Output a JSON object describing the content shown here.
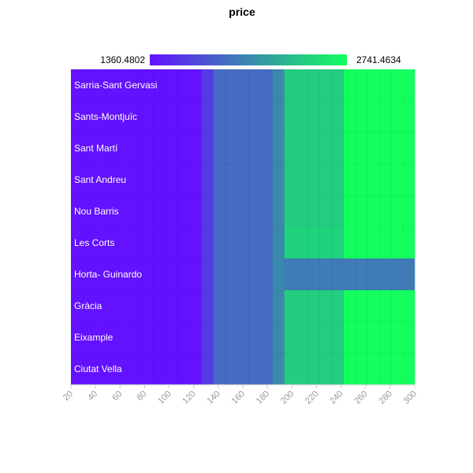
{
  "chart_data": {
    "type": "heatmap",
    "title": "price",
    "visual_map": {
      "min": 1360.4802,
      "max": 2741.4634,
      "min_label": "1360.4802",
      "max_label": "2741.4634",
      "color_low": "#6311ff",
      "color_high": "#12ff5e"
    },
    "x_ticks": [
      "20",
      "40",
      "60",
      "80",
      "100",
      "120",
      "140",
      "160",
      "180",
      "200",
      "220",
      "240",
      "260",
      "280",
      "300"
    ],
    "x_range": [
      20,
      300
    ],
    "x_step": 10,
    "x_categories": [
      20,
      30,
      40,
      50,
      60,
      70,
      80,
      90,
      100,
      110,
      120,
      130,
      140,
      150,
      160,
      170,
      180,
      190,
      200,
      210,
      220,
      230,
      240,
      250,
      260,
      270,
      280,
      290,
      300
    ],
    "rows": [
      "Sarria-Sant Gervasi",
      "Sants-Montjuïc",
      "Sant Martí",
      "Sant Andreu",
      "Nou Barris",
      "Les Corts",
      "Horta- Guinardo",
      "Gràcia",
      "Eixample",
      "Ciutat Vella"
    ],
    "values_by_segment": {
      "note": "price value per column range, same for all rows unless overridden",
      "segments": [
        {
          "from": 20,
          "to": 120,
          "value": 1360.4802
        },
        {
          "from": 130,
          "to": 130,
          "value": 1600
        },
        {
          "from": 140,
          "to": 180,
          "value": 1880
        },
        {
          "from": 190,
          "to": 190,
          "value": 2050
        },
        {
          "from": 200,
          "to": 240,
          "value": 2450
        },
        {
          "from": 250,
          "to": 300,
          "value": 2741.4634
        }
      ],
      "overrides": [
        {
          "row": "Horta- Guinardo",
          "from": 200,
          "to": 300,
          "value": 1980
        },
        {
          "row": "Les Corts",
          "from": 200,
          "to": 240,
          "value": 2480
        }
      ]
    }
  }
}
